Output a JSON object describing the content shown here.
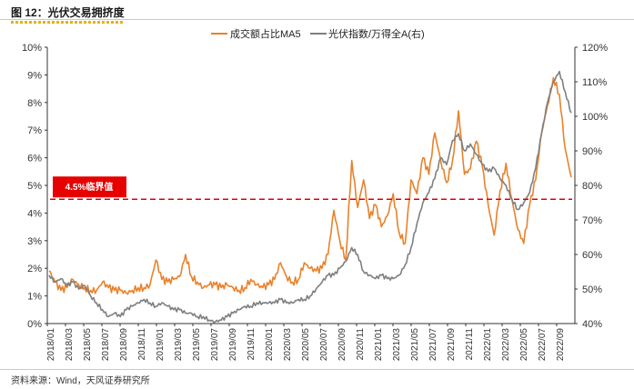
{
  "figure_title": "图 12：光伏交易拥挤度",
  "source": "资料来源：Wind，天风证券研究所",
  "colors": {
    "orange": "#e8822b",
    "gray": "#7f7f7f",
    "threshold": "#e00000"
  },
  "chart_data": {
    "type": "line",
    "legend": [
      "成交额占比MA5",
      "光伏指数/万得全A(右)"
    ],
    "left_axis": {
      "ticks": [
        "0%",
        "1%",
        "2%",
        "3%",
        "4%",
        "5%",
        "6%",
        "7%",
        "8%",
        "9%",
        "10%"
      ],
      "range": [
        0,
        10
      ]
    },
    "right_axis": {
      "ticks": [
        "40%",
        "50%",
        "60%",
        "70%",
        "80%",
        "90%",
        "100%",
        "110%",
        "120%"
      ],
      "range": [
        40,
        120
      ]
    },
    "x_ticks": [
      "2018/01",
      "2018/03",
      "2018/05",
      "2018/07",
      "2018/09",
      "2018/11",
      "2019/01",
      "2019/03",
      "2019/05",
      "2019/07",
      "2019/09",
      "2019/11",
      "2020/01",
      "2020/03",
      "2020/05",
      "2020/07",
      "2020/09",
      "2020/11",
      "2021/01",
      "2021/03",
      "2021/05",
      "2021/07",
      "2021/09",
      "2021/11",
      "2022/01",
      "2022/03",
      "2022/05",
      "2022/07",
      "2022/09"
    ],
    "threshold": {
      "value": 4.5,
      "label": "4.5%临界值"
    },
    "series": [
      {
        "name": "成交额占比MA5",
        "axis": "left",
        "values": [
          1.9,
          1.5,
          1.2,
          1.3,
          1.6,
          1.4,
          1.3,
          1.2,
          1.2,
          1.5,
          1.3,
          1.2,
          1.2,
          1.1,
          1.2,
          1.3,
          1.3,
          1.4,
          2.3,
          1.6,
          1.5,
          1.6,
          1.7,
          2.5,
          1.7,
          1.5,
          1.3,
          1.4,
          1.4,
          1.3,
          1.4,
          1.3,
          1.2,
          1.3,
          1.6,
          1.4,
          1.3,
          1.4,
          1.6,
          2.2,
          1.7,
          1.5,
          1.6,
          2.2,
          2.0,
          1.9,
          2.0,
          2.5,
          4.1,
          3.0,
          2.3,
          5.9,
          4.2,
          5.2,
          3.8,
          4.3,
          3.5,
          3.9,
          4.7,
          3.3,
          2.9,
          5.2,
          4.7,
          6.0,
          5.4,
          6.9,
          5.9,
          5.1,
          5.9,
          7.7,
          5.4,
          5.6,
          6.6,
          5.7,
          4.3,
          3.2,
          4.8,
          5.8,
          4.5,
          3.4,
          2.9,
          4.3,
          5.2,
          6.9,
          7.9,
          8.9,
          8.3,
          6.3,
          5.3
        ]
      },
      {
        "name": "光伏指数/万得全A(右)",
        "axis": "right",
        "values": [
          54.0,
          52.0,
          53.0,
          51.0,
          52.0,
          50.0,
          51.0,
          48.0,
          46.0,
          44.0,
          42.0,
          43.0,
          42.0,
          44.0,
          45.0,
          46.0,
          47.0,
          46.0,
          45.0,
          46.0,
          45.0,
          44.0,
          44.0,
          43.0,
          43.0,
          42.0,
          42.0,
          41.0,
          40.5,
          41.0,
          42.0,
          43.0,
          44.0,
          45.0,
          45.0,
          46.0,
          46.0,
          46.0,
          46.0,
          47.0,
          46.0,
          46.0,
          47.0,
          47.0,
          48.0,
          50.0,
          52.0,
          54.0,
          54.0,
          56.0,
          58.0,
          62.0,
          60.0,
          55.0,
          54.0,
          53.0,
          54.0,
          53.0,
          53.0,
          54.0,
          57.0,
          62.0,
          69.0,
          75.0,
          78.0,
          82.0,
          88.0,
          86.0,
          93.0,
          95.0,
          90.0,
          92.0,
          89.0,
          86.0,
          84.0,
          85.0,
          82.0,
          80.0,
          76.0,
          73.0,
          75.0,
          78.0,
          85.0,
          95.0,
          104.0,
          110.0,
          113.0,
          107.0,
          101.0
        ]
      }
    ]
  }
}
